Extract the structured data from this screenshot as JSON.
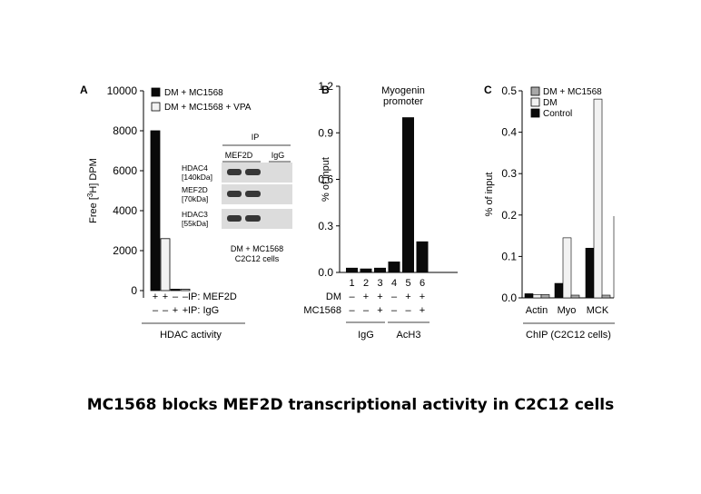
{
  "caption": "MC1568 blocks MEF2D transcriptional activity in C2C12  cells",
  "colors": {
    "black": "#0a0a0a",
    "white_bar": "#f2f2f2",
    "gray_bar": "#a8a8a8",
    "blot_bg": "#dcdcdc",
    "band": "#1a1a1a"
  },
  "chart_data": [
    {
      "panel": "A",
      "type": "bar",
      "ylabel": "Free [3H] DPM",
      "ylim": [
        0,
        10000
      ],
      "yticks": [
        0,
        2000,
        4000,
        6000,
        8000,
        10000
      ],
      "legend": [
        "DM + MC1568",
        "DM + MC1568 + VPA"
      ],
      "series": [
        {
          "name": "DM + MC1568",
          "values": [
            8000,
            60
          ]
        },
        {
          "name": "DM + MC1568 + VPA",
          "values": [
            2600,
            40
          ]
        }
      ],
      "row_labels": [
        "IP: MEF2D",
        "IP: IgG"
      ],
      "row_signs": [
        [
          "+",
          "+",
          "–",
          "–"
        ],
        [
          "–",
          "–",
          "+",
          "+"
        ]
      ],
      "xlabel": "HDAC activity",
      "inset": {
        "header": "IP",
        "columns": [
          "MEF2D",
          "IgG"
        ],
        "rows": [
          "HDAC4\n[140kDa]",
          "MEF2D\n[70kDa]",
          "HDAC3\n[55kDa]"
        ],
        "footer": [
          "DM + MC1568",
          "C2C12 cells"
        ]
      }
    },
    {
      "panel": "B",
      "type": "bar",
      "title": "Myogenin\npromoter",
      "ylabel": "% of input",
      "ylim": [
        0,
        1.2
      ],
      "yticks": [
        "0.0",
        "0.3",
        "0.6",
        "0.9",
        "1.2"
      ],
      "categories": [
        "1",
        "2",
        "3",
        "4",
        "5",
        "6"
      ],
      "values": [
        0.03,
        0.025,
        0.03,
        0.07,
        1.0,
        0.2
      ],
      "row_labels": [
        "DM",
        "MC1568"
      ],
      "row_signs": [
        [
          "–",
          "+",
          "+",
          "–",
          "+",
          "+"
        ],
        [
          "–",
          "–",
          "+",
          "–",
          "–",
          "+"
        ]
      ],
      "groups": [
        "IgG",
        "AcH3"
      ]
    },
    {
      "panel": "C",
      "type": "bar",
      "ylabel": "% of input",
      "ylim": [
        0,
        0.5
      ],
      "yticks": [
        "0.0",
        "0.1",
        "0.2",
        "0.3",
        "0.4",
        "0.5"
      ],
      "legend": [
        "DM + MC1568",
        "DM",
        "Control"
      ],
      "categories": [
        "Actin",
        "Myo",
        "MCK"
      ],
      "series": [
        {
          "name": "Control",
          "values": [
            0.01,
            0.035,
            0.12
          ]
        },
        {
          "name": "DM",
          "values": [
            0.008,
            0.145,
            0.48
          ]
        },
        {
          "name": "DM + MC1568",
          "values": [
            0.008,
            0.005,
            0.005
          ]
        }
      ],
      "xlabel": "ChIP (C2C12 cells)"
    }
  ]
}
